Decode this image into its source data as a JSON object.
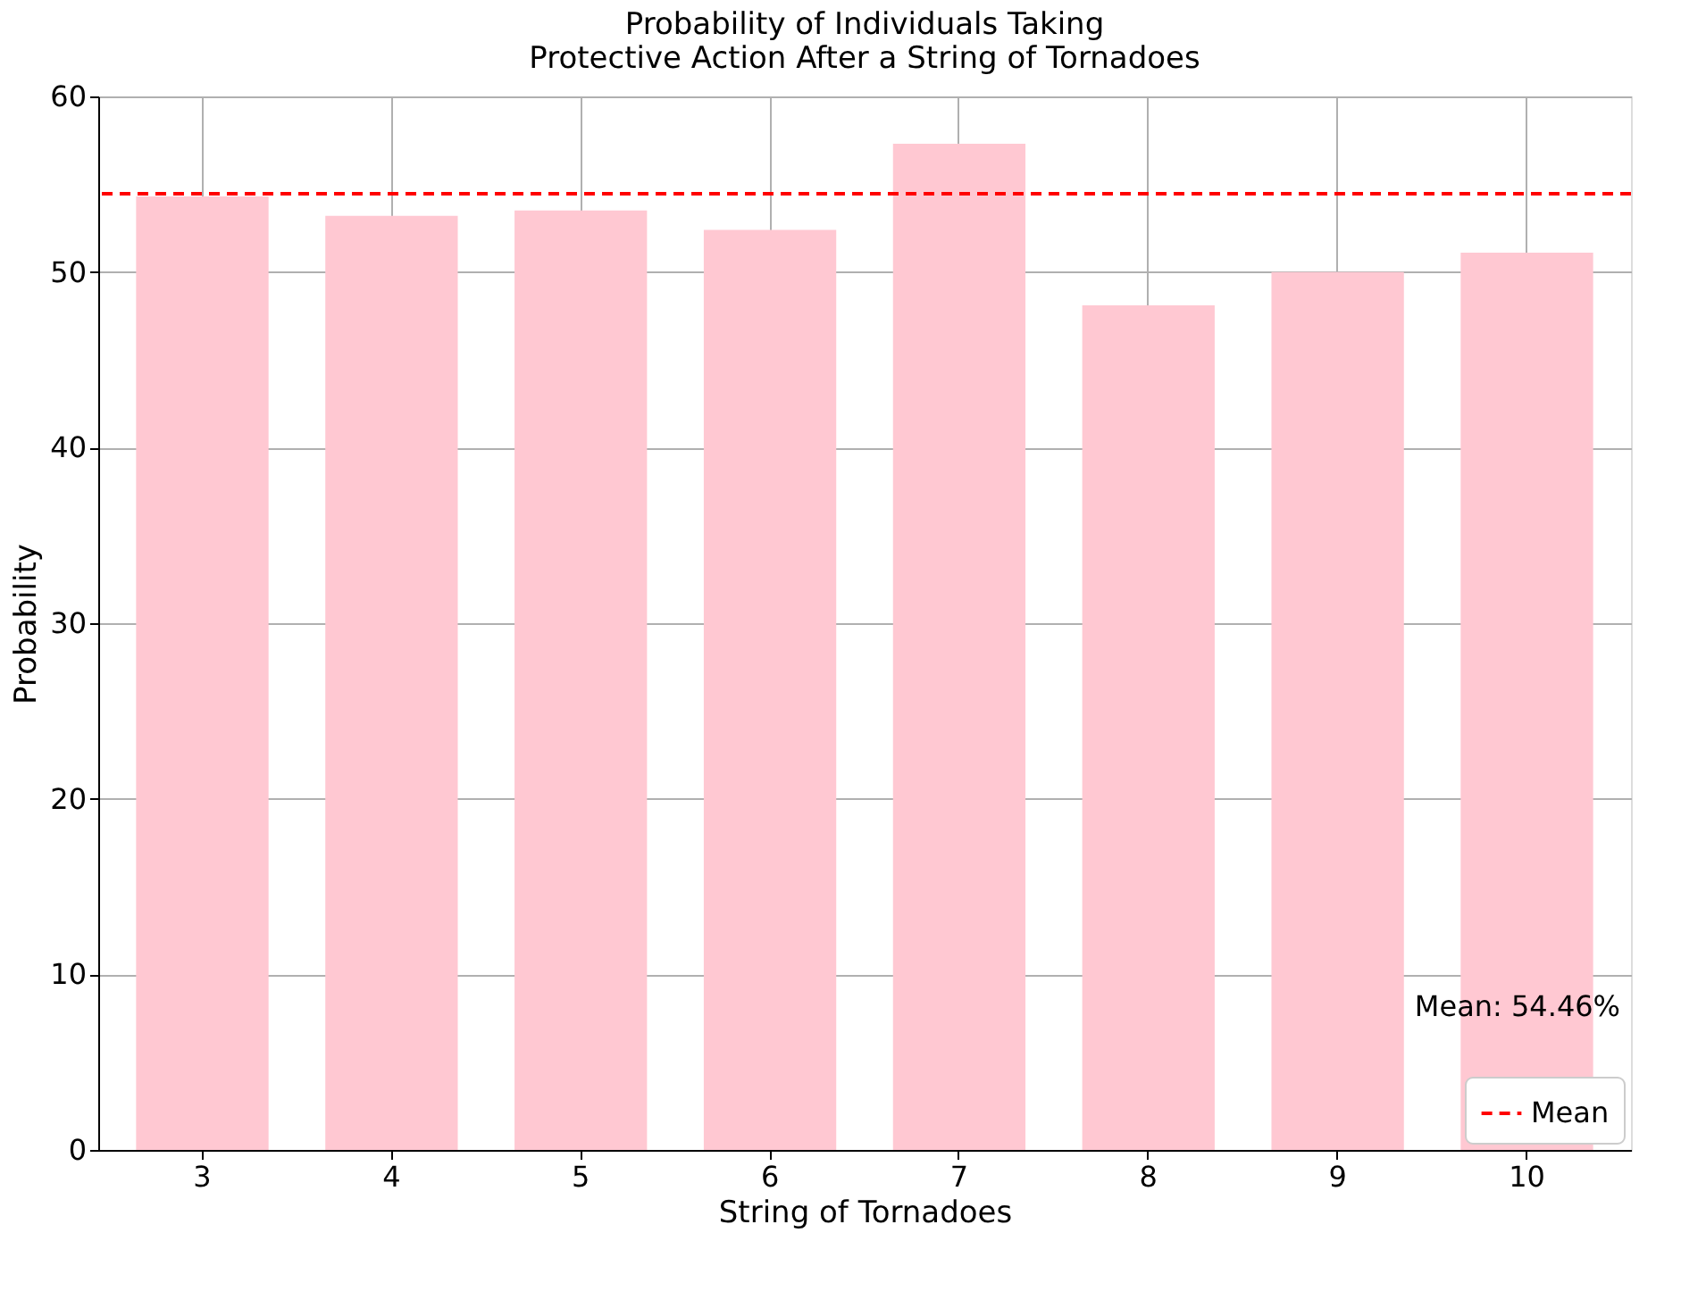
{
  "chart_data": {
    "type": "bar",
    "title": "Probability of Individuals Taking\nProtective Action After a String of Tornadoes",
    "xlabel": "String of Tornadoes",
    "ylabel": "Probability",
    "categories": [
      "3",
      "4",
      "5",
      "6",
      "7",
      "8",
      "9",
      "10"
    ],
    "values": [
      54.3,
      53.2,
      53.5,
      52.4,
      57.3,
      48.1,
      50.0,
      51.1
    ],
    "color": "#ffc8d2",
    "ylim": [
      0,
      60
    ],
    "yticks": [
      0,
      10,
      20,
      30,
      40,
      50,
      60
    ],
    "grid": true,
    "ref_lines": [
      {
        "axis": "y",
        "value": 54.46,
        "label": "Mean",
        "color": "#ff0000",
        "line_style": "dashed"
      }
    ],
    "annotations": [
      "Mean: 54.46%"
    ],
    "legend": "bottom right"
  }
}
